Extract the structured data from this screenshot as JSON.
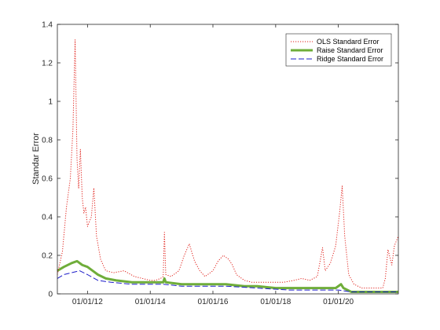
{
  "chart_data": {
    "type": "line",
    "title": "",
    "xlabel": "",
    "ylabel": "Standar Error",
    "xlim": [
      "2011-01-15",
      "2021-11-30"
    ],
    "ylim": [
      0,
      1.4
    ],
    "grid": false,
    "legend_position": "top-right",
    "x_ticks": [
      "2012-01-01",
      "2014-01-01",
      "2016-01-01",
      "2018-01-01",
      "2020-01-01"
    ],
    "x_tick_labels": [
      "01/01/12",
      "01/01/14",
      "01/01/16",
      "01/01/18",
      "01/01/20"
    ],
    "y_ticks": [
      0,
      0.2,
      0.4,
      0.6,
      0.8,
      1,
      1.2,
      1.4
    ],
    "y_tick_labels": [
      "0",
      "0.2",
      "0.4",
      "0.6",
      "0.8",
      "1",
      "1.2",
      "1.4"
    ],
    "series": [
      {
        "name": "OLS Standard Error",
        "color": "#e0201a",
        "style": "dotted",
        "points": [
          [
            "2011-01-15",
            0.1
          ],
          [
            "2011-03-15",
            0.22
          ],
          [
            "2011-05-01",
            0.45
          ],
          [
            "2011-06-15",
            0.6
          ],
          [
            "2011-07-15",
            0.85
          ],
          [
            "2011-08-10",
            1.32
          ],
          [
            "2011-09-01",
            0.7
          ],
          [
            "2011-09-20",
            0.55
          ],
          [
            "2011-10-10",
            0.75
          ],
          [
            "2011-11-01",
            0.5
          ],
          [
            "2011-11-20",
            0.42
          ],
          [
            "2011-12-10",
            0.45
          ],
          [
            "2012-01-01",
            0.35
          ],
          [
            "2012-02-15",
            0.4
          ],
          [
            "2012-03-15",
            0.55
          ],
          [
            "2012-04-15",
            0.3
          ],
          [
            "2012-06-01",
            0.18
          ],
          [
            "2012-08-01",
            0.12
          ],
          [
            "2012-11-01",
            0.11
          ],
          [
            "2013-03-01",
            0.12
          ],
          [
            "2013-07-01",
            0.09
          ],
          [
            "2013-10-01",
            0.08
          ],
          [
            "2014-01-01",
            0.07
          ],
          [
            "2014-03-01",
            0.07
          ],
          [
            "2014-05-01",
            0.08
          ],
          [
            "2014-06-01",
            0.09
          ],
          [
            "2014-06-15",
            0.32
          ],
          [
            "2014-07-01",
            0.1
          ],
          [
            "2014-09-01",
            0.09
          ],
          [
            "2014-12-01",
            0.12
          ],
          [
            "2015-02-01",
            0.2
          ],
          [
            "2015-04-01",
            0.26
          ],
          [
            "2015-06-01",
            0.17
          ],
          [
            "2015-08-01",
            0.12
          ],
          [
            "2015-10-01",
            0.09
          ],
          [
            "2016-01-01",
            0.12
          ],
          [
            "2016-03-01",
            0.17
          ],
          [
            "2016-05-01",
            0.2
          ],
          [
            "2016-07-01",
            0.18
          ],
          [
            "2016-08-15",
            0.15
          ],
          [
            "2016-10-01",
            0.1
          ],
          [
            "2017-01-01",
            0.07
          ],
          [
            "2017-04-01",
            0.06
          ],
          [
            "2017-08-01",
            0.06
          ],
          [
            "2017-12-01",
            0.06
          ],
          [
            "2018-04-01",
            0.06
          ],
          [
            "2018-08-01",
            0.07
          ],
          [
            "2018-11-01",
            0.08
          ],
          [
            "2019-02-01",
            0.07
          ],
          [
            "2019-05-01",
            0.09
          ],
          [
            "2019-07-01",
            0.24
          ],
          [
            "2019-08-01",
            0.12
          ],
          [
            "2019-10-01",
            0.16
          ],
          [
            "2019-12-01",
            0.25
          ],
          [
            "2020-01-15",
            0.42
          ],
          [
            "2020-02-15",
            0.56
          ],
          [
            "2020-03-15",
            0.3
          ],
          [
            "2020-05-01",
            0.1
          ],
          [
            "2020-07-01",
            0.05
          ],
          [
            "2020-10-01",
            0.03
          ],
          [
            "2021-01-01",
            0.03
          ],
          [
            "2021-04-01",
            0.03
          ],
          [
            "2021-06-01",
            0.03
          ],
          [
            "2021-07-01",
            0.08
          ],
          [
            "2021-08-01",
            0.23
          ],
          [
            "2021-09-15",
            0.15
          ],
          [
            "2021-10-15",
            0.25
          ],
          [
            "2021-11-30",
            0.3
          ]
        ]
      },
      {
        "name": "Raise Standard Error",
        "color": "#6fad3a",
        "style": "solid-thick",
        "points": [
          [
            "2011-01-15",
            0.12
          ],
          [
            "2011-04-01",
            0.14
          ],
          [
            "2011-07-01",
            0.16
          ],
          [
            "2011-09-01",
            0.17
          ],
          [
            "2011-11-01",
            0.15
          ],
          [
            "2012-01-01",
            0.14
          ],
          [
            "2012-03-01",
            0.12
          ],
          [
            "2012-05-01",
            0.1
          ],
          [
            "2012-08-01",
            0.08
          ],
          [
            "2012-12-01",
            0.07
          ],
          [
            "2013-06-01",
            0.06
          ],
          [
            "2014-01-01",
            0.06
          ],
          [
            "2014-06-01",
            0.06
          ],
          [
            "2014-06-15",
            0.08
          ],
          [
            "2014-07-01",
            0.06
          ],
          [
            "2015-01-01",
            0.05
          ],
          [
            "2015-06-01",
            0.05
          ],
          [
            "2016-01-01",
            0.05
          ],
          [
            "2016-06-01",
            0.05
          ],
          [
            "2017-01-01",
            0.04
          ],
          [
            "2017-06-01",
            0.04
          ],
          [
            "2018-01-01",
            0.03
          ],
          [
            "2018-06-01",
            0.03
          ],
          [
            "2019-01-01",
            0.03
          ],
          [
            "2019-06-01",
            0.03
          ],
          [
            "2019-12-01",
            0.03
          ],
          [
            "2020-02-01",
            0.05
          ],
          [
            "2020-03-01",
            0.03
          ],
          [
            "2020-06-01",
            0.01
          ],
          [
            "2021-01-01",
            0.01
          ],
          [
            "2021-06-01",
            0.01
          ],
          [
            "2021-11-30",
            0.01
          ]
        ]
      },
      {
        "name": "Ridge Standard Error",
        "color": "#1c1cc9",
        "style": "dashed",
        "points": [
          [
            "2011-01-15",
            0.08
          ],
          [
            "2011-04-01",
            0.1
          ],
          [
            "2011-07-01",
            0.11
          ],
          [
            "2011-10-01",
            0.12
          ],
          [
            "2012-01-01",
            0.1
          ],
          [
            "2012-05-01",
            0.07
          ],
          [
            "2012-10-01",
            0.06
          ],
          [
            "2013-06-01",
            0.05
          ],
          [
            "2014-01-01",
            0.05
          ],
          [
            "2014-06-01",
            0.05
          ],
          [
            "2015-01-01",
            0.04
          ],
          [
            "2016-01-01",
            0.04
          ],
          [
            "2016-06-01",
            0.04
          ],
          [
            "2017-06-01",
            0.03
          ],
          [
            "2018-06-01",
            0.02
          ],
          [
            "2019-06-01",
            0.02
          ],
          [
            "2020-01-01",
            0.02
          ],
          [
            "2020-06-01",
            0.01
          ],
          [
            "2021-06-01",
            0.01
          ],
          [
            "2021-11-30",
            0.01
          ]
        ]
      }
    ]
  }
}
